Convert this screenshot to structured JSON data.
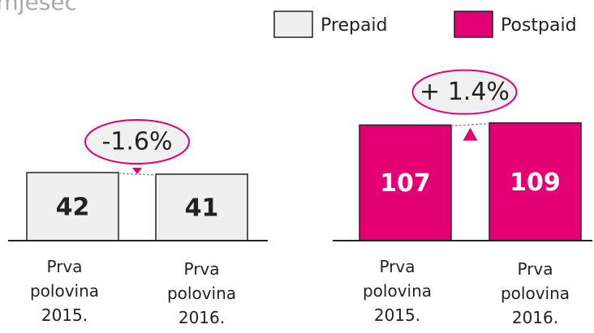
{
  "header": {
    "title": "/mjesec"
  },
  "chart_data": [
    {
      "type": "bar",
      "name": "Prepaid",
      "color": "#efefef",
      "categories": [
        [
          "Prva",
          "polovina",
          "2015."
        ],
        [
          "Prva",
          "polovina",
          "2016."
        ]
      ],
      "values": [
        42,
        41
      ],
      "ylim": [
        0,
        80
      ],
      "annotation": "-1.6%",
      "direction": "down"
    },
    {
      "type": "bar",
      "name": "Postpaid",
      "color": "#e20074",
      "categories": [
        [
          "Prva",
          "polovina",
          "2015."
        ],
        [
          "Prva",
          "polovina",
          "2016."
        ]
      ],
      "values": [
        107,
        109
      ],
      "ylim": [
        0,
        120
      ],
      "annotation": "+ 1.4%",
      "direction": "up"
    }
  ]
}
